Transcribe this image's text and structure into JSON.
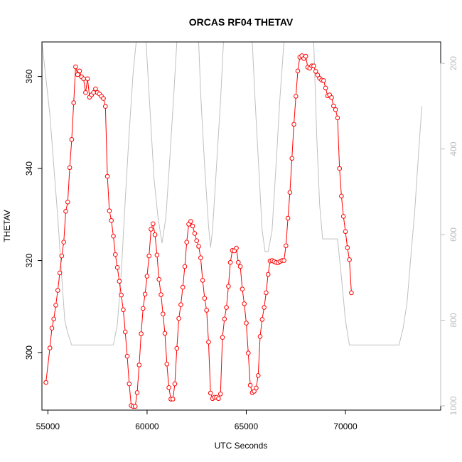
{
  "chart_data": {
    "type": "line",
    "title": "ORCAS RF04 THETAV",
    "xlabel": "UTC Seconds",
    "ylabel": "THETAV",
    "xlim": [
      54700,
      74800
    ],
    "ylim": [
      287.5,
      367.5
    ],
    "y2lim": [
      1010,
      150
    ],
    "x_ticks": [
      55000,
      60000,
      65000,
      70000
    ],
    "y_ticks": [
      300,
      320,
      340,
      360
    ],
    "y2_ticks": [
      200,
      400,
      600,
      800,
      1000
    ],
    "colors": {
      "series": "#ff0000",
      "pressure": "#c0c0c0"
    },
    "series": [
      {
        "points": [
          [
            54900,
            293.5
          ],
          [
            55100,
            301
          ],
          [
            55200,
            305.3
          ],
          [
            55300,
            307.3
          ],
          [
            55400,
            310.3
          ],
          [
            55500,
            313.5
          ],
          [
            55600,
            317.3
          ],
          [
            55700,
            321
          ],
          [
            55800,
            324
          ],
          [
            55900,
            330.7
          ],
          [
            56000,
            332.7
          ],
          [
            56100,
            340.2
          ],
          [
            56200,
            346.3
          ],
          [
            56300,
            354.3
          ],
          [
            56400,
            362.1
          ],
          [
            56500,
            360.4
          ],
          [
            56600,
            361.2
          ],
          [
            56700,
            359.9
          ],
          [
            56800,
            359.5
          ],
          [
            56900,
            356.5
          ],
          [
            57000,
            359.5
          ],
          [
            57100,
            355.5
          ],
          [
            57200,
            356
          ],
          [
            57300,
            356.5
          ],
          [
            57400,
            357.3
          ],
          [
            57500,
            356.5
          ],
          [
            57600,
            356.2
          ],
          [
            57700,
            355.7
          ],
          [
            57800,
            355.2
          ],
          [
            57900,
            353.5
          ],
          [
            58000,
            338.3
          ],
          [
            58100,
            330.8
          ],
          [
            58200,
            328.7
          ],
          [
            58300,
            325.3
          ],
          [
            58400,
            321.3
          ],
          [
            58500,
            318.5
          ],
          [
            58600,
            315.5
          ],
          [
            58700,
            312.5
          ],
          [
            58800,
            309.3
          ],
          [
            58900,
            304.5
          ],
          [
            59000,
            299.2
          ],
          [
            59100,
            293.2
          ],
          [
            59200,
            288.5
          ],
          [
            59300,
            288.3
          ],
          [
            59400,
            288.3
          ],
          [
            59500,
            291.3
          ],
          [
            59600,
            297.3
          ],
          [
            59700,
            304.1
          ],
          [
            59800,
            309.6
          ],
          [
            59900,
            312.7
          ],
          [
            60000,
            316.6
          ],
          [
            60100,
            321
          ],
          [
            60200,
            326.8
          ],
          [
            60300,
            328
          ],
          [
            60400,
            325.6
          ],
          [
            60500,
            321.2
          ],
          [
            60600,
            315.9
          ],
          [
            60700,
            312.6
          ],
          [
            60800,
            308.4
          ],
          [
            60900,
            304.2
          ],
          [
            61000,
            297.5
          ],
          [
            61100,
            292.4
          ],
          [
            61200,
            289.9
          ],
          [
            61300,
            289.9
          ],
          [
            61400,
            293.2
          ],
          [
            61500,
            300.9
          ],
          [
            61600,
            307.4
          ],
          [
            61700,
            310.4
          ],
          [
            61800,
            314.2
          ],
          [
            61900,
            318.7
          ],
          [
            62000,
            324
          ],
          [
            62100,
            327.9
          ],
          [
            62200,
            328.5
          ],
          [
            62300,
            327.5
          ],
          [
            62400,
            325.9
          ],
          [
            62500,
            324.3
          ],
          [
            62600,
            323.1
          ],
          [
            62700,
            320.6
          ],
          [
            62800,
            315.7
          ],
          [
            62900,
            311.8
          ],
          [
            63000,
            309.2
          ],
          [
            63100,
            302.3
          ],
          [
            63200,
            291.2
          ],
          [
            63300,
            290
          ],
          [
            63400,
            290.3
          ],
          [
            63500,
            290.3
          ],
          [
            63600,
            290
          ],
          [
            63700,
            291
          ],
          [
            63800,
            303.3
          ],
          [
            63900,
            307.3
          ],
          [
            64000,
            309.8
          ],
          [
            64100,
            314.4
          ],
          [
            64200,
            319.6
          ],
          [
            64300,
            322.2
          ],
          [
            64400,
            322.1
          ],
          [
            64500,
            322.7
          ],
          [
            64600,
            319.6
          ],
          [
            64700,
            318.7
          ],
          [
            64800,
            313.8
          ],
          [
            64900,
            310.6
          ],
          [
            65000,
            306.4
          ],
          [
            65100,
            299.9
          ],
          [
            65200,
            292.9
          ],
          [
            65300,
            291.3
          ],
          [
            65400,
            291.6
          ],
          [
            65500,
            292.3
          ],
          [
            65600,
            295
          ],
          [
            65700,
            303.5
          ],
          [
            65800,
            307.2
          ],
          [
            65900,
            309.8
          ],
          [
            66000,
            313
          ],
          [
            66100,
            317
          ],
          [
            66200,
            319.9
          ],
          [
            66300,
            320
          ],
          [
            66400,
            319.8
          ],
          [
            66500,
            319.6
          ],
          [
            66600,
            319.5
          ],
          [
            66700,
            319.8
          ],
          [
            66800,
            320
          ],
          [
            66900,
            320
          ],
          [
            67000,
            323.2
          ],
          [
            67100,
            329.2
          ],
          [
            67200,
            334.8
          ],
          [
            67300,
            342.2
          ],
          [
            67400,
            349.6
          ],
          [
            67500,
            355.7
          ],
          [
            67600,
            361.2
          ],
          [
            67700,
            364.2
          ],
          [
            67800,
            364.5
          ],
          [
            67900,
            363.9
          ],
          [
            68000,
            364.4
          ],
          [
            68100,
            362
          ],
          [
            68200,
            361.8
          ],
          [
            68300,
            362.3
          ],
          [
            68400,
            362.3
          ],
          [
            68500,
            361.1
          ],
          [
            68600,
            360.3
          ],
          [
            68700,
            359.6
          ],
          [
            68800,
            359.2
          ],
          [
            68900,
            359.1
          ],
          [
            69000,
            357.5
          ],
          [
            69100,
            355.8
          ],
          [
            69200,
            356
          ],
          [
            69300,
            355.4
          ],
          [
            69400,
            353.6
          ],
          [
            69500,
            352.8
          ],
          [
            69600,
            351
          ],
          [
            69700,
            340
          ],
          [
            69800,
            334
          ],
          [
            69900,
            329.6
          ],
          [
            70000,
            326.3
          ],
          [
            70100,
            322.8
          ],
          [
            70200,
            320.2
          ],
          [
            70300,
            313
          ]
        ]
      }
    ],
    "pressure_path": [
      [
        54700,
        150
      ],
      [
        55100,
        320
      ],
      [
        55300,
        440
      ],
      [
        55500,
        560
      ],
      [
        55700,
        700
      ],
      [
        55850,
        800
      ],
      [
        56000,
        830
      ],
      [
        56200,
        858
      ],
      [
        58300,
        858
      ],
      [
        58500,
        810
      ],
      [
        58700,
        690
      ],
      [
        58900,
        520
      ],
      [
        59100,
        360
      ],
      [
        59300,
        220
      ],
      [
        59450,
        150
      ],
      [
        59950,
        150
      ],
      [
        60150,
        310
      ],
      [
        60350,
        470
      ],
      [
        60550,
        560
      ],
      [
        60750,
        620
      ],
      [
        60950,
        560
      ],
      [
        61150,
        420
      ],
      [
        61350,
        270
      ],
      [
        61500,
        150
      ],
      [
        62600,
        150
      ],
      [
        62700,
        270
      ],
      [
        62900,
        440
      ],
      [
        63100,
        580
      ],
      [
        63200,
        630
      ],
      [
        63300,
        590
      ],
      [
        63500,
        440
      ],
      [
        63700,
        290
      ],
      [
        63850,
        150
      ],
      [
        65300,
        150
      ],
      [
        65450,
        290
      ],
      [
        65650,
        460
      ],
      [
        65800,
        590
      ],
      [
        65950,
        640
      ],
      [
        66100,
        640
      ],
      [
        66300,
        590
      ],
      [
        66500,
        440
      ],
      [
        66700,
        280
      ],
      [
        66900,
        150
      ],
      [
        68400,
        150
      ],
      [
        68550,
        370
      ],
      [
        68700,
        530
      ],
      [
        68850,
        610
      ],
      [
        69600,
        610
      ],
      [
        69800,
        700
      ],
      [
        70000,
        800
      ],
      [
        70200,
        858
      ],
      [
        72700,
        858
      ],
      [
        72900,
        820
      ],
      [
        73100,
        760
      ],
      [
        73300,
        650
      ],
      [
        73500,
        540
      ],
      [
        73700,
        400
      ],
      [
        73850,
        300
      ]
    ]
  }
}
